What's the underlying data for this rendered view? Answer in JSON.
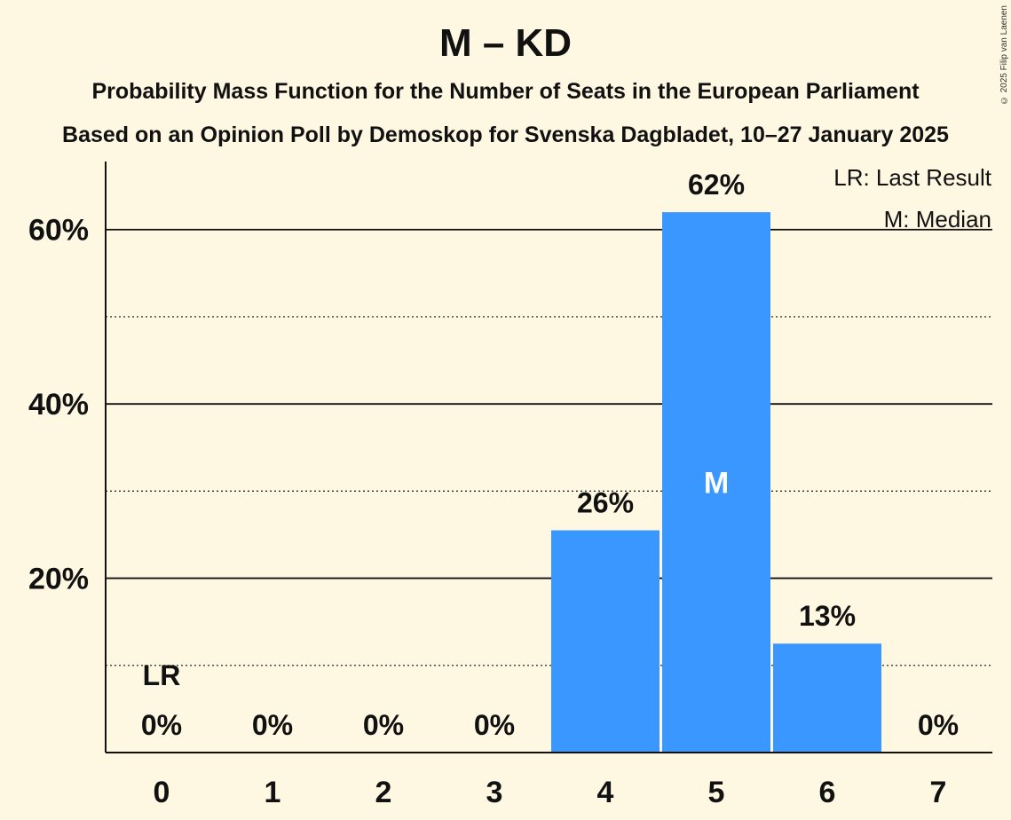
{
  "title": "M – KD",
  "subtitle_1": "Probability Mass Function for the Number of Seats in the European Parliament",
  "subtitle_2": "Based on an Opinion Poll by Demoskop for Svenska Dagbladet, 10–27 January 2025",
  "copyright": "© 2025 Filip van Laenen",
  "legend": {
    "last_result": "LR: Last Result",
    "median": "M: Median",
    "placement": "top-right"
  },
  "colors": {
    "background": "#fef8e2",
    "bar": "#3a97ff",
    "text": "#111111"
  },
  "chart_data": {
    "type": "bar",
    "categories": [
      "0",
      "1",
      "2",
      "3",
      "4",
      "5",
      "6",
      "7"
    ],
    "values": [
      0,
      0,
      0,
      0,
      25.5,
      62,
      12.5,
      0
    ],
    "value_labels": [
      "0%",
      "0%",
      "0%",
      "0%",
      "26%",
      "62%",
      "13%",
      "0%"
    ],
    "ylim": [
      0,
      67
    ],
    "y_ticks": [
      {
        "value": 20,
        "label": "20%"
      },
      {
        "value": 40,
        "label": "40%"
      },
      {
        "value": 60,
        "label": "60%"
      }
    ],
    "minor_gridlines": [
      10,
      30,
      50
    ],
    "last_result": {
      "category": "0",
      "label": "LR"
    },
    "median": {
      "category": "5",
      "label": "M"
    }
  }
}
